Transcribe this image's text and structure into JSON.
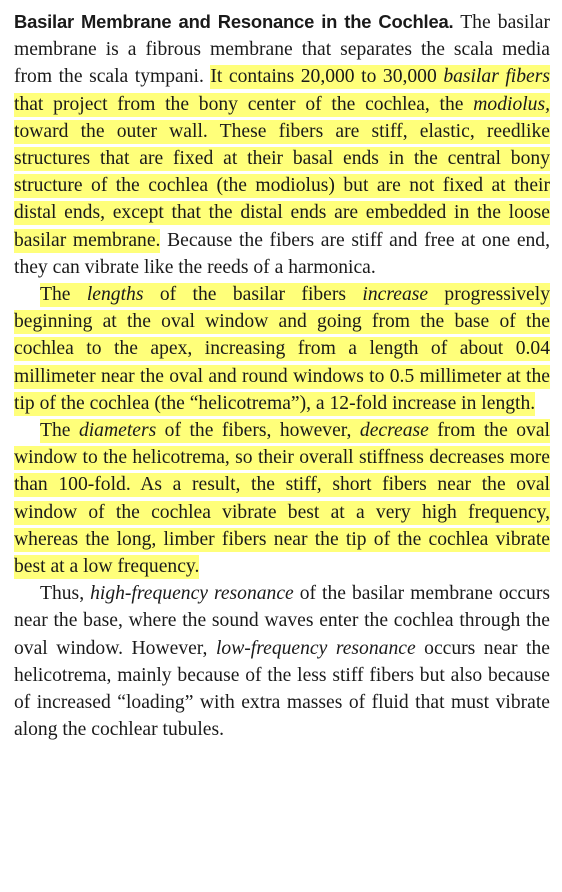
{
  "heading": "Basilar Membrane and Resonance in the Cochlea.",
  "p1": {
    "a": "The basilar membrane is a fibrous membrane that separates the scala media from the scala tympani.",
    "hl_a": "It contains 20,000 to 30,000 ",
    "hl_em1": "basilar fibers",
    "hl_b": " that project from the bony center of the cochlea, the ",
    "hl_em2": "modiolus,",
    "hl_c": " toward the outer wall. These fibers are stiff, elastic, reedlike structures that are fixed at their basal ends in the central bony structure of the cochlea (the modiolus) but are not fixed at their distal ends, except that the distal ends are embedded in the loose basilar membrane.",
    "b": " Because the fibers are stiff and free at one end, they can vibrate like the reeds of a harmonica."
  },
  "p2": {
    "a": "The ",
    "em1": "lengths",
    "b": " of the basilar fibers ",
    "em2": "increase",
    "c": " progressively beginning at the oval window and going from the base of the cochlea to the apex, increasing from a length of about 0.04 millimeter near the oval and round windows to 0.5 millimeter at the tip of the cochlea (the “helicotrema”), a 12-fold increase in length."
  },
  "p3": {
    "a": "The ",
    "em1": "diameters",
    "b": " of the fibers, however, ",
    "em2": "decrease",
    "c": " from the oval window to the helicotrema, so their overall stiff­ness decreases more than 100-fold. As a result, the stiff, short fibers near the oval window of the cochlea vibrate best at a very high frequency, whereas the long, limber fibers near the tip of the cochlea vibrate best at a low frequency."
  },
  "p4": {
    "a": "Thus, ",
    "em1": "high-frequency resonance",
    "b": " of the basilar mem­brane occurs near the base, where the sound waves enter the cochlea through the oval window. However, ",
    "em2": "low-frequency resonance",
    "c": " occurs near the helicotrema, mainly because of the less stiff fibers but also because of increased “loading” with extra masses of fluid that must vibrate along the cochlear tubules."
  },
  "colors": {
    "highlight": "#ffff7a",
    "text": "#1a1a1a"
  }
}
